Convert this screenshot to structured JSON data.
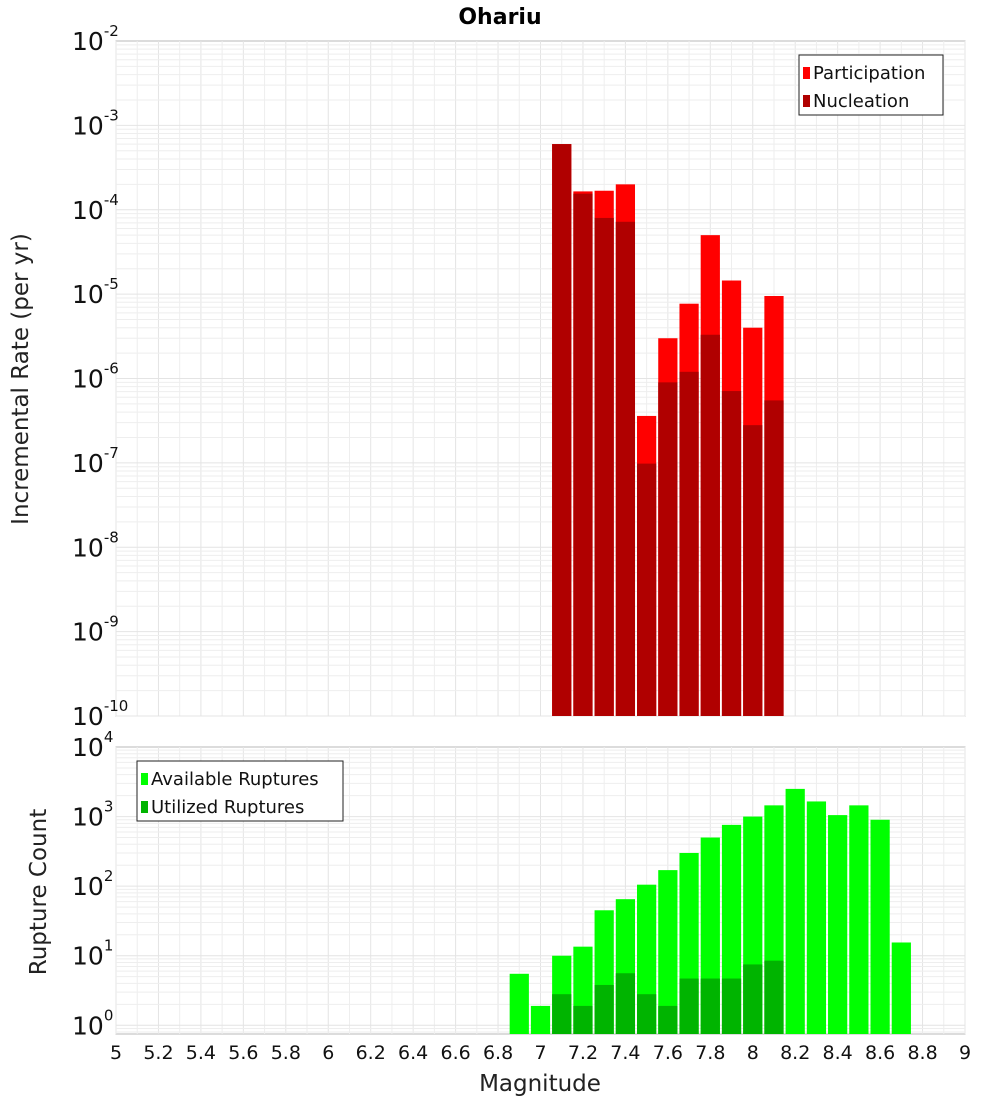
{
  "chart_data": [
    {
      "type": "bar",
      "title": "Ohariu",
      "xlabel": "",
      "ylabel": "Incremental Rate (per yr)",
      "xlim": [
        5,
        9
      ],
      "ylim": [
        1e-10,
        0.01
      ],
      "yscale": "log",
      "ytick_exponents": [
        -10,
        -9,
        -8,
        -7,
        -6,
        -5,
        -4,
        -3,
        -2
      ],
      "grid": true,
      "legend_position": "top-right",
      "bin_width": 0.1,
      "x": [
        7.1,
        7.2,
        7.3,
        7.4,
        7.5,
        7.6,
        7.7,
        7.8,
        7.9,
        8.0,
        8.1
      ],
      "series": [
        {
          "name": "Participation",
          "color": "#ff0000",
          "values": [
            0.0006,
            0.000165,
            0.000168,
            0.0002,
            3.6e-07,
            3e-06,
            7.7e-06,
            5e-05,
            1.45e-05,
            4e-06,
            9.5e-06
          ]
        },
        {
          "name": "Nucleation",
          "color": "#b00000",
          "values": [
            0.0006,
            0.000155,
            8e-05,
            7.2e-05,
            9.8e-08,
            9e-07,
            1.2e-06,
            3.3e-06,
            7.1e-07,
            2.8e-07,
            5.5e-07
          ]
        }
      ]
    },
    {
      "type": "bar",
      "title": "",
      "xlabel": "Magnitude",
      "ylabel": "Rupture Count",
      "xlim": [
        5,
        9
      ],
      "ylim": [
        0.75,
        10000
      ],
      "yscale": "log",
      "ytick_exponents": [
        0,
        1,
        2,
        3,
        4
      ],
      "xticks": [
        "5",
        "5.2",
        "5.4",
        "5.6",
        "5.8",
        "6",
        "6.2",
        "6.4",
        "6.6",
        "6.8",
        "7",
        "7.2",
        "7.4",
        "7.6",
        "7.8",
        "8",
        "8.2",
        "8.4",
        "8.6",
        "8.8",
        "9"
      ],
      "grid": true,
      "legend_position": "top-left",
      "bin_width": 0.1,
      "x": [
        6.9,
        7.0,
        7.1,
        7.2,
        7.3,
        7.4,
        7.5,
        7.6,
        7.7,
        7.8,
        7.9,
        8.0,
        8.1,
        8.2,
        8.3,
        8.4,
        8.5,
        8.6,
        8.7
      ],
      "series": [
        {
          "name": "Available Ruptures",
          "color": "#00ff00",
          "values": [
            5.5,
            1.9,
            10,
            13.5,
            45,
            65,
            105,
            170,
            300,
            500,
            760,
            1000,
            1450,
            2500,
            1650,
            1050,
            1450,
            900,
            15.5
          ]
        },
        {
          "name": "Utilized Ruptures",
          "color": "#00b400",
          "values": [
            0,
            0,
            2.8,
            1.9,
            3.8,
            5.6,
            2.8,
            1.9,
            4.7,
            4.7,
            4.7,
            7.5,
            8.5,
            0,
            0,
            0,
            0,
            0,
            0
          ]
        }
      ]
    }
  ]
}
